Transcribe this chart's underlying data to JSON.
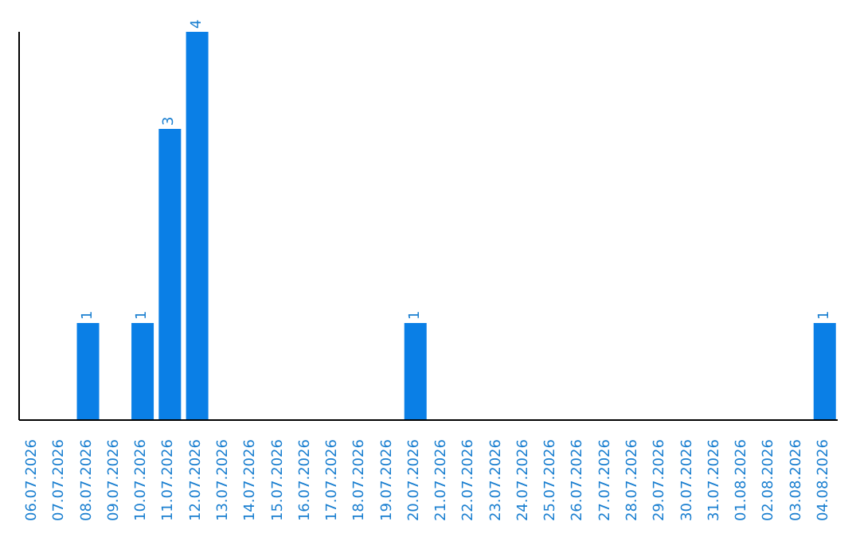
{
  "chart_data": {
    "type": "bar",
    "categories": [
      "06.07.2026",
      "07.07.2026",
      "08.07.2026",
      "09.07.2026",
      "10.07.2026",
      "11.07.2026",
      "12.07.2026",
      "13.07.2026",
      "14.07.2026",
      "15.07.2026",
      "16.07.2026",
      "17.07.2026",
      "18.07.2026",
      "19.07.2026",
      "20.07.2026",
      "21.07.2026",
      "22.07.2026",
      "23.07.2026",
      "24.07.2026",
      "25.07.2026",
      "26.07.2026",
      "27.07.2026",
      "28.07.2026",
      "29.07.2026",
      "30.07.2026",
      "31.07.2026",
      "01.08.2026",
      "02.08.2026",
      "03.08.2026",
      "04.08.2026"
    ],
    "values": [
      0,
      0,
      1,
      0,
      1,
      3,
      4,
      0,
      0,
      0,
      0,
      0,
      0,
      0,
      1,
      0,
      0,
      0,
      0,
      0,
      0,
      0,
      0,
      0,
      0,
      0,
      0,
      0,
      0,
      1
    ],
    "value_labels": [
      null,
      null,
      "1",
      null,
      "1",
      "3",
      "4",
      null,
      null,
      null,
      null,
      null,
      null,
      null,
      "1",
      null,
      null,
      null,
      null,
      null,
      null,
      null,
      null,
      null,
      null,
      null,
      null,
      null,
      null,
      "1"
    ],
    "color": "#0a7fe6"
  }
}
